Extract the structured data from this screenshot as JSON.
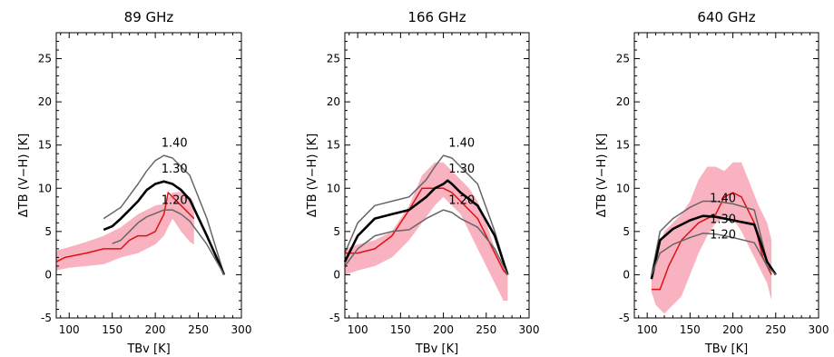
{
  "chart_data": [
    {
      "type": "line",
      "title": "89 GHz",
      "xlabel": "TBv [K]",
      "ylabel": "ΔTB (V−H) [K]",
      "xlim": [
        85,
        300
      ],
      "ylim": [
        -5,
        28
      ],
      "xticks": [
        100,
        150,
        200,
        250,
        300
      ],
      "yticks": [
        -5,
        0,
        5,
        10,
        15,
        20,
        25
      ],
      "grid": false,
      "band": {
        "color": "#f9b3c0",
        "x": [
          85,
          100,
          120,
          140,
          160,
          180,
          190,
          200,
          210,
          220,
          230,
          240,
          245
        ],
        "upper": [
          2.8,
          3.2,
          3.8,
          4.5,
          5.5,
          7.0,
          7.5,
          8.0,
          8.2,
          9.5,
          9.6,
          9.0,
          8.3
        ],
        "lower": [
          0.5,
          0.8,
          1.0,
          1.2,
          2.0,
          2.5,
          3.0,
          3.5,
          4.5,
          6.5,
          5.0,
          3.8,
          3.5
        ]
      },
      "series": [
        {
          "color": "#dd1111",
          "width": 1.5,
          "x": [
            85,
            95,
            120,
            140,
            160,
            170,
            180,
            190,
            200,
            210,
            215,
            230,
            245
          ],
          "y": [
            1.5,
            2.0,
            2.5,
            3.0,
            3.0,
            4.0,
            4.5,
            4.5,
            5.0,
            7.0,
            9.5,
            8.0,
            6.5
          ]
        },
        {
          "color": "#666666",
          "width": 1.5,
          "label": "1.40",
          "x": [
            140,
            160,
            180,
            190,
            200,
            210,
            220,
            230,
            240,
            260,
            280
          ],
          "y": [
            6.5,
            7.8,
            10.5,
            12.0,
            13.2,
            13.8,
            13.5,
            12.5,
            11.5,
            6.5,
            0
          ]
        },
        {
          "color": "#000000",
          "width": 2.6,
          "label": "1.30",
          "x": [
            140,
            150,
            160,
            170,
            180,
            190,
            200,
            210,
            220,
            230,
            240,
            260,
            280
          ],
          "y": [
            5.2,
            5.6,
            6.5,
            7.5,
            8.5,
            9.8,
            10.5,
            10.8,
            10.5,
            9.8,
            8.7,
            4.5,
            0
          ]
        },
        {
          "color": "#666666",
          "width": 1.5,
          "label": "1.20",
          "x": [
            150,
            160,
            170,
            180,
            190,
            200,
            210,
            220,
            230,
            240,
            260,
            280
          ],
          "y": [
            3.6,
            4.0,
            5.0,
            6.0,
            6.7,
            7.1,
            7.5,
            7.5,
            7.0,
            6.2,
            3.5,
            0
          ]
        }
      ],
      "annotations": [
        {
          "text": "1.40",
          "x": 207,
          "y": 14.8
        },
        {
          "text": "1.30",
          "x": 207,
          "y": 11.8
        },
        {
          "text": "1.20",
          "x": 207,
          "y": 8.2
        }
      ]
    },
    {
      "type": "line",
      "title": "166 GHz",
      "xlabel": "TBv [K]",
      "ylabel": "ΔTB (V−H) [K]",
      "xlim": [
        85,
        300
      ],
      "ylim": [
        -5,
        28
      ],
      "xticks": [
        100,
        150,
        200,
        250,
        300
      ],
      "yticks": [
        -5,
        0,
        5,
        10,
        15,
        20,
        25
      ],
      "grid": false,
      "band": {
        "color": "#f9b3c0",
        "x": [
          85,
          100,
          120,
          140,
          160,
          175,
          190,
          200,
          210,
          220,
          230,
          240,
          250,
          260,
          270,
          275
        ],
        "upper": [
          3.0,
          3.5,
          4.0,
          5.0,
          8.0,
          11.5,
          13.0,
          13.0,
          12.0,
          11.0,
          10.0,
          8.5,
          6.0,
          3.0,
          1.0,
          0.5
        ],
        "lower": [
          0.0,
          0.5,
          1.0,
          2.0,
          4.0,
          6.0,
          8.0,
          9.0,
          8.0,
          7.0,
          5.0,
          3.0,
          1.0,
          -1.0,
          -3.0,
          -3.0
        ]
      },
      "series": [
        {
          "color": "#dd1111",
          "width": 1.5,
          "x": [
            85,
            100,
            120,
            140,
            160,
            175,
            190,
            200,
            210,
            220,
            240,
            260,
            270,
            275
          ],
          "y": [
            2.5,
            2.5,
            3.0,
            4.5,
            7.5,
            10.0,
            10.0,
            10.0,
            9.5,
            8.5,
            6.5,
            2.5,
            0.5,
            0
          ]
        },
        {
          "color": "#666666",
          "width": 1.5,
          "label": "1.40",
          "x": [
            85,
            100,
            120,
            140,
            160,
            180,
            190,
            200,
            210,
            220,
            240,
            260,
            275
          ],
          "y": [
            2.5,
            6.0,
            8.0,
            8.5,
            9.0,
            11.0,
            12.5,
            13.8,
            13.5,
            12.5,
            10.5,
            5.0,
            0
          ]
        },
        {
          "color": "#000000",
          "width": 2.6,
          "label": "1.30",
          "x": [
            85,
            100,
            120,
            140,
            160,
            180,
            190,
            200,
            205,
            210,
            220,
            240,
            260,
            275
          ],
          "y": [
            1.5,
            4.5,
            6.5,
            7.0,
            7.5,
            9.0,
            10.0,
            10.5,
            10.9,
            10.5,
            9.5,
            8.0,
            4.5,
            0
          ]
        },
        {
          "color": "#666666",
          "width": 1.5,
          "label": "1.20",
          "x": [
            85,
            100,
            120,
            140,
            160,
            180,
            190,
            200,
            210,
            220,
            240,
            260,
            275
          ],
          "y": [
            1.0,
            3.0,
            4.5,
            5.0,
            5.2,
            6.5,
            7.0,
            7.5,
            7.2,
            6.5,
            5.5,
            3.0,
            0
          ]
        }
      ],
      "annotations": [
        {
          "text": "1.40",
          "x": 206,
          "y": 14.8
        },
        {
          "text": "1.30",
          "x": 206,
          "y": 11.8
        },
        {
          "text": "1.20",
          "x": 206,
          "y": 8.2
        }
      ]
    },
    {
      "type": "line",
      "title": "640 GHz",
      "xlabel": "TBv [K]",
      "ylabel": "ΔTB (V−H) [K]",
      "xlim": [
        85,
        300
      ],
      "ylim": [
        -5,
        28
      ],
      "xticks": [
        100,
        150,
        200,
        250,
        300
      ],
      "yticks": [
        -5,
        0,
        5,
        10,
        15,
        20,
        25
      ],
      "grid": false,
      "band": {
        "color": "#f9b3c0",
        "x": [
          105,
          110,
          120,
          130,
          140,
          150,
          160,
          170,
          180,
          190,
          200,
          210,
          220,
          230,
          240,
          245
        ],
        "upper": [
          -0.5,
          2.0,
          5.0,
          6.0,
          7.0,
          8.5,
          11.0,
          12.5,
          12.5,
          12.0,
          13.0,
          13.0,
          10.5,
          8.0,
          6.0,
          4.0
        ],
        "lower": [
          -2.0,
          -3.5,
          -4.5,
          -3.5,
          -2.5,
          0.0,
          2.5,
          4.5,
          6.0,
          6.5,
          6.5,
          5.0,
          3.0,
          1.0,
          -1.0,
          -3.0
        ]
      },
      "series": [
        {
          "color": "#dd1111",
          "width": 1.5,
          "x": [
            105,
            115,
            125,
            140,
            160,
            180,
            190,
            200,
            210,
            225,
            235,
            245
          ],
          "y": [
            -1.7,
            -1.7,
            1.0,
            4.0,
            6.0,
            7.0,
            9.0,
            9.5,
            9.0,
            6.0,
            2.0,
            0
          ]
        },
        {
          "color": "#666666",
          "width": 1.5,
          "label": "1.40",
          "x": [
            105,
            115,
            130,
            150,
            165,
            180,
            200,
            225,
            240,
            250
          ],
          "y": [
            0,
            5.0,
            6.5,
            7.8,
            8.5,
            8.5,
            8.2,
            7.5,
            1.5,
            0
          ]
        },
        {
          "color": "#000000",
          "width": 2.6,
          "label": "1.30",
          "x": [
            105,
            115,
            130,
            150,
            165,
            180,
            200,
            225,
            240,
            250
          ],
          "y": [
            -0.5,
            4.0,
            5.3,
            6.3,
            6.8,
            6.7,
            6.3,
            5.8,
            1.5,
            0
          ]
        },
        {
          "color": "#666666",
          "width": 1.5,
          "label": "1.20",
          "x": [
            105,
            115,
            130,
            150,
            165,
            180,
            200,
            225,
            240,
            250
          ],
          "y": [
            0,
            2.5,
            3.5,
            4.3,
            4.8,
            4.7,
            4.3,
            3.7,
            1.0,
            0
          ]
        }
      ],
      "annotations": [
        {
          "text": "1.40",
          "x": 173,
          "y": 8.4
        },
        {
          "text": "1.30",
          "x": 173,
          "y": 6.0
        },
        {
          "text": "1.20",
          "x": 173,
          "y": 4.2
        }
      ]
    }
  ]
}
